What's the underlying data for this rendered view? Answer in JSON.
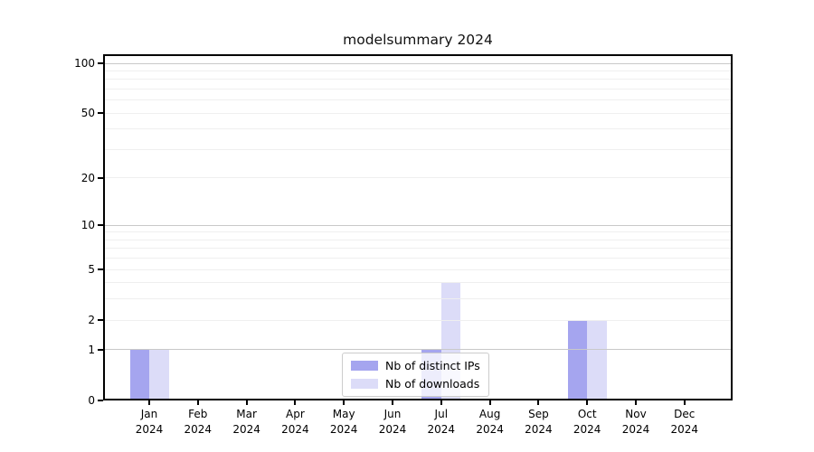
{
  "chart_data": {
    "type": "bar",
    "title": "modelsummary 2024",
    "categories": [
      "Jan",
      "Feb",
      "Mar",
      "Apr",
      "May",
      "Jun",
      "Jul",
      "Aug",
      "Sep",
      "Oct",
      "Nov",
      "Dec"
    ],
    "x_tick_year": "2024",
    "series": [
      {
        "name": "Nb of distinct IPs",
        "color": "#a5a5ef",
        "values": [
          1,
          0,
          0,
          0,
          0,
          0,
          1,
          0,
          0,
          2,
          0,
          0
        ]
      },
      {
        "name": "Nb of downloads",
        "color": "#dcdcf8",
        "values": [
          1,
          0,
          0,
          0,
          0,
          0,
          4,
          0,
          0,
          2,
          0,
          0
        ]
      }
    ],
    "y_axis": {
      "scale": "log1p",
      "tick_values": [
        0,
        1,
        2,
        5,
        10,
        20,
        50,
        100
      ],
      "tick_labels": [
        "0",
        "1",
        "2",
        "5",
        "10",
        "20",
        "50",
        "100"
      ],
      "major_gridlines": [
        1,
        10,
        100
      ],
      "minor_gridlines": [
        2,
        3,
        4,
        5,
        6,
        7,
        8,
        9,
        20,
        30,
        40,
        50,
        60,
        70,
        80,
        90
      ],
      "ylim": [
        0,
        100
      ]
    },
    "legend": {
      "position": "lower center",
      "entries": [
        "Nb of distinct IPs",
        "Nb of downloads"
      ]
    },
    "grid": true,
    "colors": {
      "major_grid": "#c9c9c9",
      "minor_grid": "#efefef",
      "axis": "#000000",
      "background": "#ffffff"
    }
  }
}
